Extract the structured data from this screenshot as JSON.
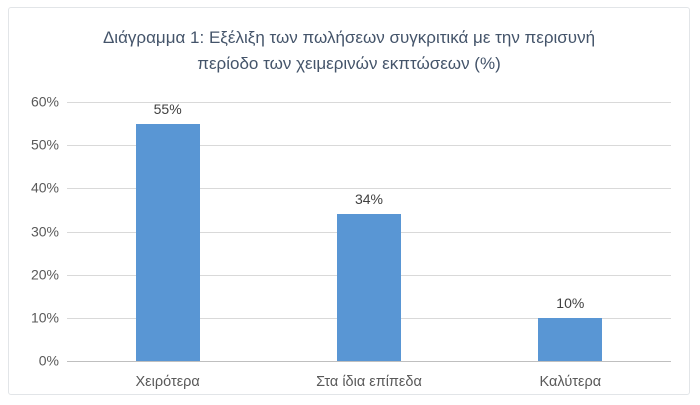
{
  "chart_data": {
    "type": "bar",
    "title": "Διάγραμμα 1: Εξέλιξη των πωλήσεων συγκριτικά με την περισυνή περίοδο των χειμερινών εκπτώσεων (%)",
    "categories": [
      "Χειρότερα",
      "Στα ίδια επίπεδα",
      "Καλύτερα"
    ],
    "values": [
      55,
      34,
      10
    ],
    "data_labels": [
      "55%",
      "34%",
      "10%"
    ],
    "xlabel": "",
    "ylabel": "",
    "ylim": [
      0,
      60
    ],
    "ytick_step": 10,
    "ytick_labels": [
      "0%",
      "10%",
      "20%",
      "30%",
      "40%",
      "50%",
      "60%"
    ],
    "grid": true,
    "legend": "none",
    "colors": {
      "bar": "#5996d4",
      "title": "#44546a",
      "tick_label": "#595959",
      "data_label": "#404040",
      "gridline": "#d9d9d9",
      "axis_line": "#bfbfbf",
      "card_border": "#e2e5e8"
    }
  }
}
